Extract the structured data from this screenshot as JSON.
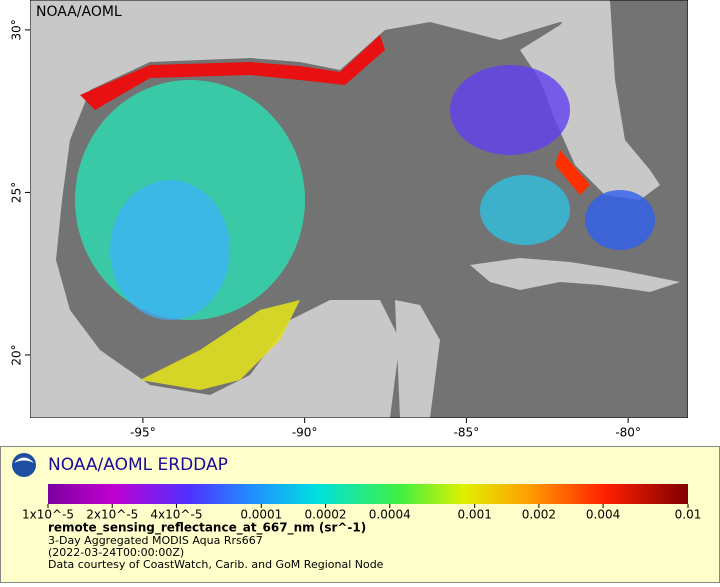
{
  "header": {
    "title": "NOAA/AOML"
  },
  "map": {
    "xlim": [
      -98.49,
      -78.15
    ],
    "ylim": [
      18.06,
      30.92
    ],
    "xticks": [
      {
        "value": -95,
        "label": "-95°"
      },
      {
        "value": -90,
        "label": "-90°"
      },
      {
        "value": -85,
        "label": "-85°"
      },
      {
        "value": -80,
        "label": "-80°"
      }
    ],
    "yticks": [
      {
        "value": 30,
        "label": "30°"
      },
      {
        "value": 25,
        "label": "25°"
      },
      {
        "value": 20,
        "label": "20°"
      }
    ]
  },
  "legend": {
    "brand": "NOAA/AOML ERDDAP",
    "colorbar": {
      "log": true,
      "xlim": [
        1e-05,
        0.01
      ],
      "ticks": [
        {
          "value": 1e-05,
          "label": "1x10^-5"
        },
        {
          "value": 2e-05,
          "label": "2x10^-5"
        },
        {
          "value": 4e-05,
          "label": "4x10^-5"
        },
        0.0001,
        0.0002,
        0.0004,
        0.001,
        0.002,
        0.004,
        0.01
      ]
    },
    "variable": "remote_sensing_reflectance_at_667_nm (sr^-1)",
    "dataset": "3-Day Aggregated MODIS Aqua Rrs667",
    "time": "(2022-03-24T00:00:00Z)",
    "credit": "Data courtesy of CoastWatch, Carib. and GoM Regional Node"
  }
}
